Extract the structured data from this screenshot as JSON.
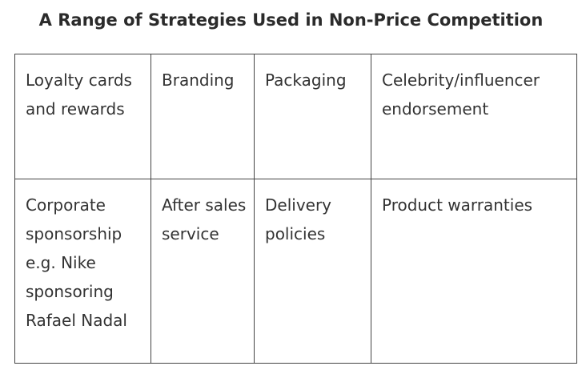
{
  "title": "A Range of Strategies Used in Non-Price Competition",
  "table": {
    "rows": [
      [
        "Loyalty cards and rewards",
        "Branding",
        "Packaging",
        "Celebrity/influencer endorsement"
      ],
      [
        "Corporate sponsorship e.g. Nike sponsoring Rafael Nadal",
        "After sales service",
        "Delivery policies",
        "Product warranties"
      ]
    ]
  }
}
